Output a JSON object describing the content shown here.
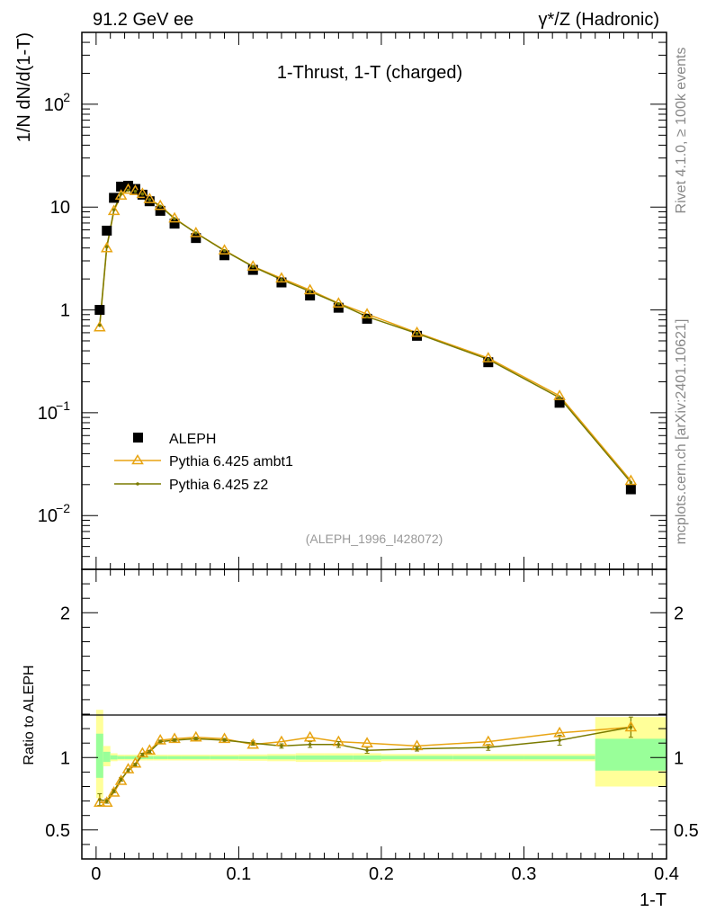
{
  "header": {
    "left": "91.2 GeV ee",
    "right": "γ*/Z (Hadronic)"
  },
  "side_labels": {
    "rivet": "Rivet 4.1.0, ≥ 100k events",
    "mcplots": "mcplots.cern.ch [arXiv:2401.10621]"
  },
  "colors": {
    "aleph": "#000000",
    "ambt1": "#e8a412",
    "z2": "#7a7a00",
    "band_inner": "#99ff99",
    "band_outer": "#ffff99"
  },
  "chart_data": [
    {
      "type": "line",
      "title": "1-Thrust, 1-T (charged)",
      "xlabel": "1-T",
      "ylabel": "1/N  dN/d(1-T)",
      "yscale": "log",
      "xlim": [
        -0.01,
        0.4
      ],
      "ylim": [
        0.003,
        500
      ],
      "y_ticks": [
        {
          "value": 100,
          "label": "10",
          "exp": "2"
        },
        {
          "value": 10,
          "label": "10",
          "exp": ""
        },
        {
          "value": 1,
          "label": "1",
          "exp": ""
        },
        {
          "value": 0.1,
          "label": "10",
          "exp": "−1"
        },
        {
          "value": 0.01,
          "label": "10",
          "exp": "−2"
        }
      ],
      "watermark": "(ALEPH_1996_I428072)",
      "legend": {
        "position": "bottom-left",
        "entries": [
          "ALEPH",
          "Pythia 6.425 ambt1",
          "Pythia 6.425 z2"
        ]
      },
      "bin_edges": [
        0,
        0.005,
        0.01,
        0.015,
        0.02,
        0.025,
        0.03,
        0.035,
        0.04,
        0.05,
        0.06,
        0.08,
        0.1,
        0.12,
        0.14,
        0.16,
        0.18,
        0.2,
        0.25,
        0.3,
        0.35,
        0.4
      ],
      "x": [
        0.0025,
        0.0075,
        0.0125,
        0.0175,
        0.0225,
        0.0275,
        0.0325,
        0.0375,
        0.045,
        0.055,
        0.07,
        0.09,
        0.11,
        0.13,
        0.15,
        0.17,
        0.19,
        0.225,
        0.275,
        0.325,
        0.375
      ],
      "series": [
        {
          "name": "ALEPH",
          "marker": "square",
          "values": [
            1.0,
            5.9,
            12.3,
            15.8,
            16.1,
            15.0,
            13.2,
            11.4,
            9.2,
            6.9,
            5.0,
            3.4,
            2.45,
            1.85,
            1.38,
            1.05,
            0.82,
            0.56,
            0.31,
            0.125,
            0.018
          ]
        },
        {
          "name": "Pythia 6.425 ambt1",
          "marker": "triangle",
          "values": [
            0.68,
            4.0,
            9.2,
            13.0,
            14.8,
            14.4,
            13.5,
            12.0,
            10.3,
            7.8,
            5.6,
            3.8,
            2.65,
            2.03,
            1.56,
            1.16,
            0.91,
            0.6,
            0.34,
            0.146,
            0.0218
          ]
        },
        {
          "name": "Pythia 6.425 z2",
          "marker": "dot",
          "values": [
            0.71,
            4.1,
            9.4,
            13.4,
            14.6,
            14.2,
            13.4,
            11.8,
            10.2,
            7.7,
            5.6,
            3.77,
            2.64,
            1.97,
            1.51,
            1.15,
            0.86,
            0.59,
            0.33,
            0.14,
            0.021
          ]
        }
      ]
    },
    {
      "type": "line",
      "title": "",
      "xlabel": "1-T",
      "ylabel": "Ratio to ALEPH",
      "xlim": [
        -0.01,
        0.4
      ],
      "ylim": [
        0.3,
        2.3
      ],
      "x_ticks": [
        {
          "value": 0,
          "label": "0"
        },
        {
          "value": 0.1,
          "label": "0.1"
        },
        {
          "value": 0.2,
          "label": "0.2"
        },
        {
          "value": 0.3,
          "label": "0.3"
        },
        {
          "value": 0.4,
          "label": "0.4"
        }
      ],
      "y_ticks": [
        {
          "value": 2,
          "label": "2"
        },
        {
          "value": 1,
          "label": "1"
        },
        {
          "value": 0.5,
          "label": "0.5"
        }
      ],
      "band_inner_halfwidth": [
        0.14,
        0.03,
        0.013,
        0.01,
        0.01,
        0.01,
        0.01,
        0.01,
        0.01,
        0.01,
        0.01,
        0.01,
        0.01,
        0.012,
        0.014,
        0.014,
        0.014,
        0.012,
        0.012,
        0.012,
        0.09
      ],
      "band_outer_halfwidth": [
        0.28,
        0.06,
        0.025,
        0.02,
        0.02,
        0.02,
        0.02,
        0.02,
        0.02,
        0.02,
        0.02,
        0.02,
        0.022,
        0.025,
        0.03,
        0.03,
        0.03,
        0.025,
        0.025,
        0.025,
        0.2
      ],
      "band_upper_offset": [
        0.05,
        0.02,
        0.005,
        0,
        0,
        0,
        0,
        0,
        0,
        0,
        0,
        0,
        0,
        0,
        0,
        0,
        0,
        0,
        0,
        0,
        0.08
      ],
      "series": [
        {
          "name": "Pythia 6.425 ambt1",
          "values": [
            0.69,
            0.69,
            0.76,
            0.84,
            0.92,
            0.96,
            1.03,
            1.05,
            1.12,
            1.13,
            1.14,
            1.13,
            1.09,
            1.11,
            1.14,
            1.11,
            1.1,
            1.08,
            1.11,
            1.17,
            1.21
          ]
        },
        {
          "name": "Pythia 6.425 z2",
          "values": [
            0.71,
            0.7,
            0.77,
            0.85,
            0.91,
            0.95,
            1.02,
            1.04,
            1.11,
            1.12,
            1.13,
            1.12,
            1.1,
            1.08,
            1.09,
            1.09,
            1.05,
            1.06,
            1.07,
            1.12,
            1.21
          ],
          "errors": [
            0.04,
            0.015,
            0.012,
            0.012,
            0.012,
            0.01,
            0.01,
            0.01,
            0.01,
            0.01,
            0.01,
            0.012,
            0.015,
            0.015,
            0.02,
            0.02,
            0.02,
            0.015,
            0.02,
            0.035,
            0.07
          ]
        }
      ]
    }
  ]
}
